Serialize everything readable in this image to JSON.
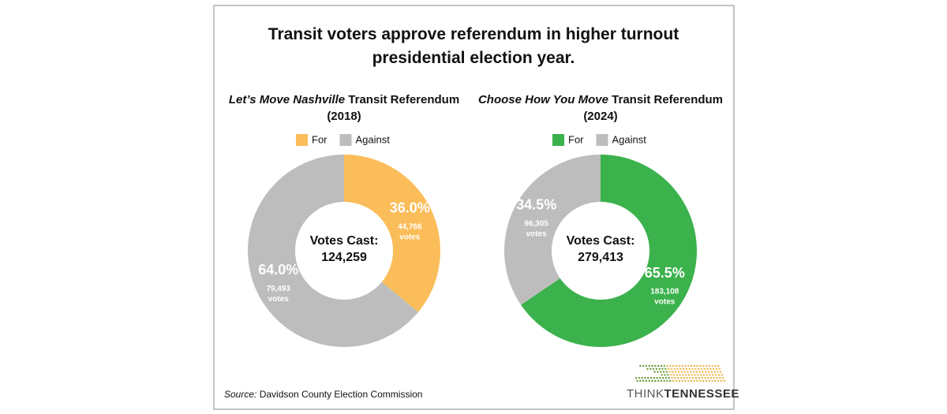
{
  "title": "Transit voters approve referendum in higher turnout presidential election year.",
  "source_prefix": "Source:",
  "source": "Davidson County Election Commission",
  "logo": {
    "left": "THINK",
    "right": "TENNESSEE"
  },
  "chart_data": [
    {
      "type": "pie",
      "title_italic": "Let’s Move Nashville",
      "title_rest": "Transit Referendum",
      "subtitle": "(2018)",
      "categories": [
        "For",
        "Against"
      ],
      "colors": [
        "#fbbd59",
        "#bdbdbd"
      ],
      "values": [
        36.0,
        64.0
      ],
      "value_labels": [
        "36.0%",
        "64.0%"
      ],
      "votes": [
        44766,
        79493
      ],
      "votes_labels": [
        "44,766",
        "79,493"
      ],
      "votes_unit": "votes",
      "center_label": "Votes Cast:",
      "total": 124259,
      "total_label": "124,259"
    },
    {
      "type": "pie",
      "title_italic": "Choose How You Move",
      "title_rest": "Transit Referendum",
      "subtitle": "(2024)",
      "categories": [
        "For",
        "Against"
      ],
      "colors": [
        "#3bb24c",
        "#bdbdbd"
      ],
      "values": [
        65.5,
        34.5
      ],
      "value_labels": [
        "65.5%",
        "34.5%"
      ],
      "votes": [
        183108,
        96305
      ],
      "votes_labels": [
        "183,108",
        "96,305"
      ],
      "votes_unit": "votes",
      "center_label": "Votes Cast:",
      "total": 279413,
      "total_label": "279,413"
    }
  ]
}
